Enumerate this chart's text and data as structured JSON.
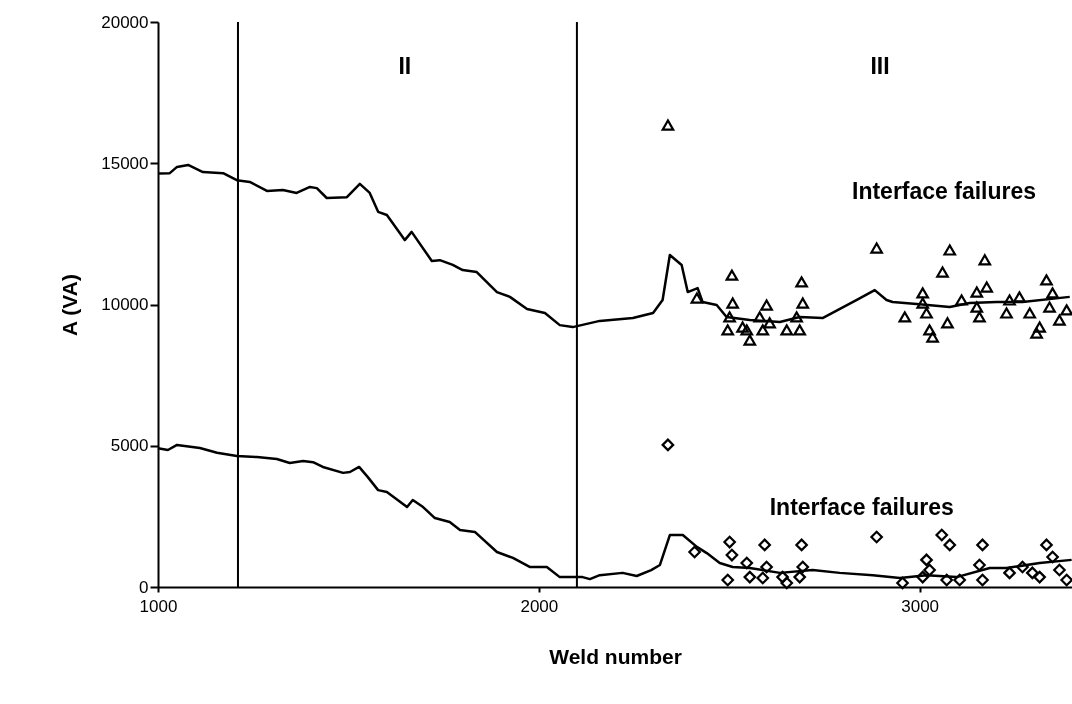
{
  "chart_data": {
    "type": "line",
    "xlabel": "Weld number",
    "ylabel": "A (VA)",
    "xlim": [
      1000,
      3400
    ],
    "xticks": [
      1000,
      2000,
      3000
    ],
    "ylim": [
      0,
      20000
    ],
    "yticks": [
      0,
      5000,
      10000,
      15000,
      20000
    ],
    "grid": false,
    "series": [
      {
        "color": "#000000",
        "x": [
          1000,
          1031,
          1050,
          1079,
          1118,
          1171,
          1207,
          1241,
          1286,
          1328,
          1364,
          1399,
          1417,
          1443,
          1496,
          1530,
          1556,
          1578,
          1601,
          1648,
          1666,
          1719,
          1740,
          1774,
          1800,
          1837,
          1890,
          1924,
          1969,
          2016,
          2055,
          2089,
          2160,
          2247,
          2300,
          2325,
          2344,
          2375,
          2391,
          2417,
          2430,
          2467,
          2493,
          2554,
          2633,
          2685,
          2745,
          2835,
          2882,
          2913,
          2929,
          2992,
          3079,
          3131,
          3202,
          3270,
          3394
        ],
        "values": [
          14640,
          14650,
          14870,
          14940,
          14690,
          14650,
          14400,
          14340,
          14020,
          14050,
          13950,
          14160,
          14120,
          13770,
          13800,
          14270,
          13950,
          13280,
          13170,
          12280,
          12570,
          11540,
          11570,
          11400,
          11220,
          11150,
          10440,
          10270,
          9840,
          9700,
          9270,
          9200,
          9420,
          9520,
          9700,
          10160,
          11750,
          11400,
          10440,
          10580,
          10090,
          9980,
          9560,
          9450,
          9380,
          9560,
          9520,
          10160,
          10510,
          10160,
          10090,
          10020,
          9910,
          10050,
          10090,
          10090,
          10270
        ]
      },
      {
        "color": "#000000",
        "x": [
          1000,
          1026,
          1050,
          1110,
          1155,
          1207,
          1260,
          1312,
          1346,
          1381,
          1407,
          1433,
          1486,
          1504,
          1528,
          1551,
          1578,
          1601,
          1654,
          1669,
          1696,
          1727,
          1766,
          1793,
          1832,
          1890,
          1932,
          1976,
          2021,
          2055,
          2115,
          2134,
          2160,
          2220,
          2257,
          2295,
          2318,
          2344,
          2378,
          2415,
          2441,
          2475,
          2509,
          2554,
          2633,
          2719,
          2790,
          2877,
          2948,
          3018,
          3097,
          3184,
          3228,
          3315,
          3399
        ],
        "values": [
          4910,
          4850,
          5030,
          4920,
          4750,
          4640,
          4600,
          4530,
          4390,
          4460,
          4420,
          4250,
          4040,
          4070,
          4250,
          3890,
          3430,
          3360,
          2830,
          3080,
          2830,
          2440,
          2300,
          2020,
          1950,
          1240,
          1030,
          710,
          710,
          350,
          350,
          280,
          420,
          500,
          390,
          600,
          780,
          1840,
          1840,
          1420,
          1200,
          850,
          710,
          670,
          500,
          600,
          500,
          420,
          320,
          420,
          350,
          670,
          670,
          850,
          960
        ]
      },
      {
        "type": "scatter",
        "marker": "triangle",
        "color": "#000000",
        "x": [
          2339,
          2415,
          2507,
          2509,
          2501,
          2496,
          2535,
          2546,
          2554,
          2580,
          2588,
          2598,
          2606,
          2651,
          2677,
          2690,
          2693,
          2685,
          2887,
          2961,
          3008,
          3008,
          3018,
          3026,
          3034,
          3060,
          3073,
          3079,
          3110,
          3150,
          3150,
          3157,
          3171,
          3176,
          3228,
          3236,
          3262,
          3289,
          3307,
          3315,
          3333,
          3341,
          3349,
          3367,
          3386
        ],
        "values": [
          16350,
          10230,
          11040,
          10050,
          9560,
          9100,
          9200,
          9100,
          8740,
          9560,
          9100,
          9980,
          9350,
          9100,
          9560,
          10800,
          10050,
          9100,
          12000,
          9560,
          10410,
          10050,
          9700,
          9100,
          8850,
          11150,
          9350,
          11930,
          10160,
          10440,
          9910,
          9560,
          11580,
          10620,
          9700,
          10160,
          10270,
          9700,
          8990,
          9200,
          10870,
          9910,
          10410,
          9450,
          9810
        ]
      },
      {
        "type": "scatter",
        "marker": "diamond",
        "color": "#000000",
        "x": [
          2339,
          2409,
          2501,
          2507,
          2496,
          2546,
          2554,
          2593,
          2598,
          2588,
          2640,
          2651,
          2690,
          2693,
          2685,
          2887,
          2955,
          3008,
          3018,
          3026,
          3058,
          3079,
          3071,
          3105,
          3165,
          3157,
          3165,
          3236,
          3270,
          3296,
          3333,
          3349,
          3315,
          3367,
          3386
        ],
        "values": [
          5030,
          1240,
          1590,
          1130,
          250,
          850,
          350,
          1490,
          710,
          320,
          350,
          140,
          1490,
          710,
          350,
          1770,
          140,
          350,
          960,
          600,
          1840,
          1490,
          250,
          250,
          1490,
          780,
          250,
          500,
          710,
          500,
          1490,
          1060,
          350,
          600,
          250
        ]
      }
    ],
    "ref_lines": [
      {
        "axis": "x",
        "value": 1210,
        "color": "#000000"
      },
      {
        "axis": "x",
        "value": 2100,
        "color": "#000000"
      }
    ],
    "annotations": [
      "II",
      "III",
      "Interface failures",
      "Interface failures"
    ]
  }
}
